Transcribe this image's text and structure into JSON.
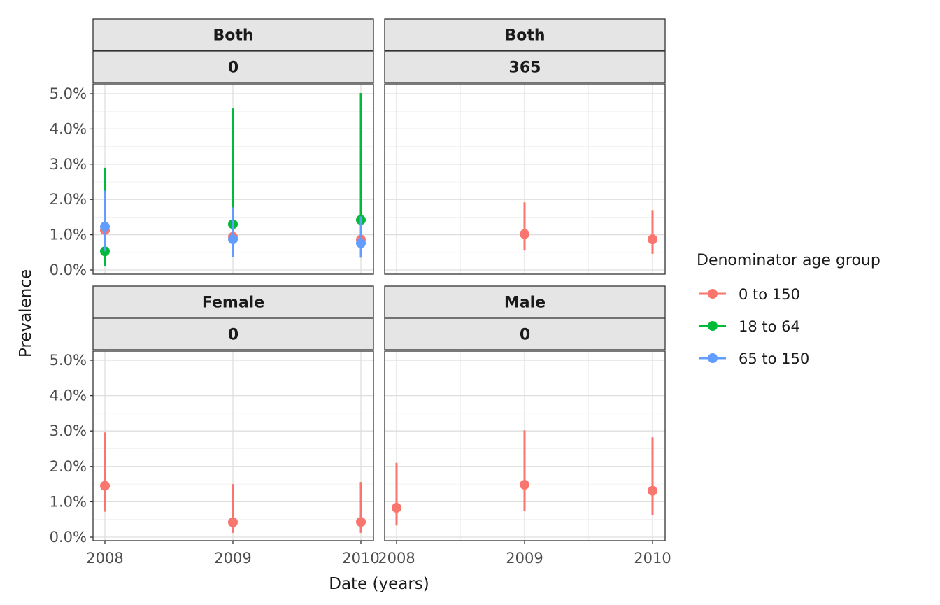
{
  "chart_data": {
    "type": "scatter",
    "xlabel": "Date (years)",
    "ylabel": "Prevalence",
    "x_ticks": [
      "2008",
      "2009",
      "2010"
    ],
    "y_ticks": [
      "0.0%",
      "1.0%",
      "2.0%",
      "3.0%",
      "4.0%",
      "5.0%"
    ],
    "ylim": [
      0,
      0.05
    ],
    "legend": {
      "title": "Denominator age group",
      "position": "right",
      "entries": [
        {
          "name": "0 to 150",
          "color": "#F8766D"
        },
        {
          "name": "18 to 64",
          "color": "#00BA38"
        },
        {
          "name": "65 to 150",
          "color": "#619CFF"
        }
      ]
    },
    "panels": [
      {
        "strip": [
          "Both",
          "0"
        ],
        "series": [
          {
            "name": "0 to 150",
            "color": "#F8766D",
            "points": [
              {
                "x": "2008",
                "y": 0.0113,
                "lower": 0.0048,
                "upper": 0.0215
              },
              {
                "x": "2009",
                "y": 0.0094,
                "lower": 0.004,
                "upper": 0.0175
              },
              {
                "x": "2010",
                "y": 0.0086,
                "lower": 0.004,
                "upper": 0.016
              }
            ]
          },
          {
            "name": "18 to 64",
            "color": "#00BA38",
            "points": [
              {
                "x": "2008",
                "y": 0.0053,
                "lower": 0.001,
                "upper": 0.029
              },
              {
                "x": "2009",
                "y": 0.013,
                "lower": 0.004,
                "upper": 0.0458
              },
              {
                "x": "2010",
                "y": 0.0142,
                "lower": 0.0045,
                "upper": 0.0502
              }
            ]
          },
          {
            "name": "65 to 150",
            "color": "#619CFF",
            "points": [
              {
                "x": "2008",
                "y": 0.0123,
                "lower": 0.0053,
                "upper": 0.0225
              },
              {
                "x": "2009",
                "y": 0.0087,
                "lower": 0.0037,
                "upper": 0.0178
              },
              {
                "x": "2010",
                "y": 0.0076,
                "lower": 0.0035,
                "upper": 0.0152
              }
            ]
          }
        ]
      },
      {
        "strip": [
          "Both",
          "365"
        ],
        "series": [
          {
            "name": "0 to 150",
            "color": "#F8766D",
            "points": [
              {
                "x": "2009",
                "y": 0.0102,
                "lower": 0.0055,
                "upper": 0.0192
              },
              {
                "x": "2010",
                "y": 0.0087,
                "lower": 0.0046,
                "upper": 0.017
              }
            ]
          }
        ]
      },
      {
        "strip": [
          "Female",
          "0"
        ],
        "series": [
          {
            "name": "0 to 150",
            "color": "#F8766D",
            "points": [
              {
                "x": "2008",
                "y": 0.0145,
                "lower": 0.0072,
                "upper": 0.0296
              },
              {
                "x": "2009",
                "y": 0.0042,
                "lower": 0.0012,
                "upper": 0.015
              },
              {
                "x": "2010",
                "y": 0.0043,
                "lower": 0.0012,
                "upper": 0.0156
              }
            ]
          }
        ]
      },
      {
        "strip": [
          "Male",
          "0"
        ],
        "series": [
          {
            "name": "0 to 150",
            "color": "#F8766D",
            "points": [
              {
                "x": "2008",
                "y": 0.0083,
                "lower": 0.0033,
                "upper": 0.021
              },
              {
                "x": "2009",
                "y": 0.0148,
                "lower": 0.0074,
                "upper": 0.0302
              },
              {
                "x": "2010",
                "y": 0.0131,
                "lower": 0.0062,
                "upper": 0.0282
              }
            ]
          }
        ]
      }
    ]
  }
}
